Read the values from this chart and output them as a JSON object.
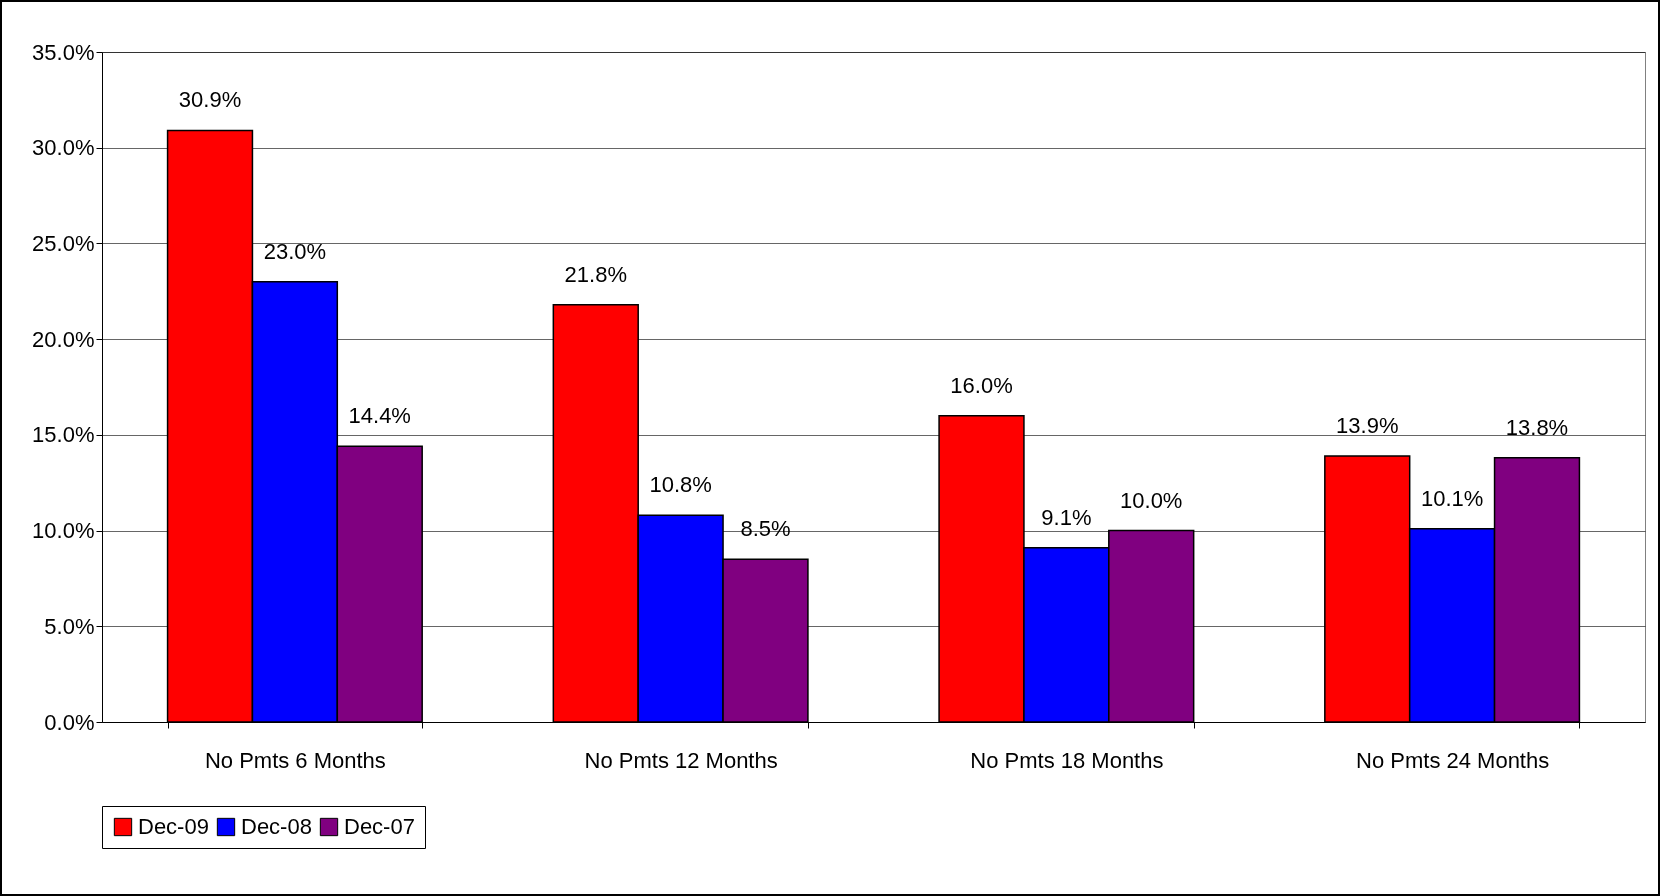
{
  "chart_data": {
    "type": "bar",
    "categories": [
      "No Pmts 6 Months",
      "No Pmts 12 Months",
      "No Pmts 18 Months",
      "No Pmts 24 Months"
    ],
    "series": [
      {
        "name": "Dec-09",
        "color": "#ff0000",
        "values": [
          30.9,
          21.8,
          16.0,
          13.9
        ],
        "value_labels": [
          "30.9%",
          "21.8%",
          "16.0%",
          "13.9%"
        ]
      },
      {
        "name": "Dec-08",
        "color": "#0000ff",
        "values": [
          23.0,
          10.8,
          9.1,
          10.1
        ],
        "value_labels": [
          "23.0%",
          "10.8%",
          "9.1%",
          "10.1%"
        ]
      },
      {
        "name": "Dec-07",
        "color": "#800080",
        "values": [
          14.4,
          8.5,
          10.0,
          13.8
        ],
        "value_labels": [
          "14.4%",
          "8.5%",
          "10.0%",
          "13.8%"
        ]
      }
    ],
    "ylim": [
      0,
      35
    ],
    "yticks": [
      {
        "value": 0,
        "label": "0.0%"
      },
      {
        "value": 5,
        "label": "5.0%"
      },
      {
        "value": 10,
        "label": "10.0%"
      },
      {
        "value": 15,
        "label": "15.0%"
      },
      {
        "value": 20,
        "label": "20.0%"
      },
      {
        "value": 25,
        "label": "25.0%"
      },
      {
        "value": 30,
        "label": "30.0%"
      },
      {
        "value": 35,
        "label": "35.0%"
      }
    ],
    "grid": "y",
    "legend": "bottom"
  }
}
